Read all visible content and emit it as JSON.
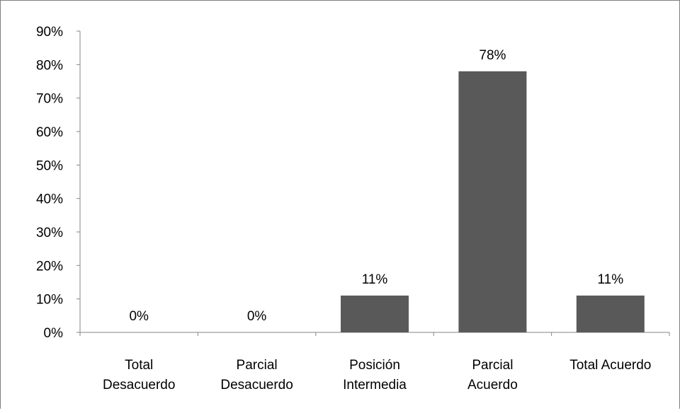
{
  "chart_data": {
    "type": "bar",
    "categories": [
      [
        "Total",
        "Desacuerdo"
      ],
      [
        "Parcial",
        "Desacuerdo"
      ],
      [
        "Posición",
        "Intermedia"
      ],
      [
        "Parcial",
        "Acuerdo"
      ],
      [
        "Total Acuerdo"
      ]
    ],
    "values": [
      0,
      0,
      11,
      78,
      11
    ],
    "data_labels": [
      "0%",
      "0%",
      "11%",
      "78%",
      "11%"
    ],
    "ylim": [
      0,
      90
    ],
    "yticks": [
      0,
      10,
      20,
      30,
      40,
      50,
      60,
      70,
      80,
      90
    ],
    "ytick_labels": [
      "0%",
      "10%",
      "20%",
      "30%",
      "40%",
      "50%",
      "60%",
      "70%",
      "80%",
      "90%"
    ],
    "grid": false,
    "legend": "none",
    "bar_color": "#595959",
    "axis_color": "#868686"
  }
}
